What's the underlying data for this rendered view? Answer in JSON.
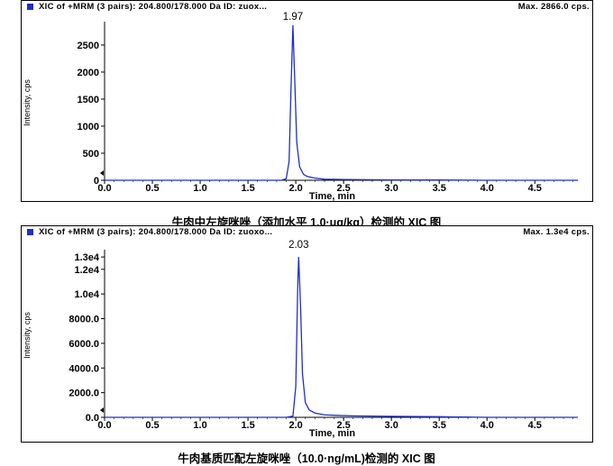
{
  "panels": [
    {
      "header": "XIC of +MRM (3 pairs): 204.800/178.000 Da ID: zuox...",
      "max_label": "Max. 2866.0 cps.",
      "caption": "牛肉中左旋咪唑（添加水平 1.0·μg/kg）检测的 XIC 图",
      "color_accent": "#1f2fc4"
    },
    {
      "header": "XIC of +MRM (3 pairs): 204.800/178.000 Da ID: zuoxo...",
      "max_label": "Max. 1.3e4 cps.",
      "caption": "牛肉基质匹配左旋咪唑（10.0·ng/mL)检测的 XIC 图",
      "color_accent": "#1f2fc4"
    }
  ],
  "chart_data": [
    {
      "type": "line",
      "xlabel": "Time, min",
      "ylabel": "Intensity, cps",
      "xlim": [
        0,
        4.95
      ],
      "ylim": [
        0,
        2866
      ],
      "x_ticks": [
        "0.0",
        "0.5",
        "1.0",
        "1.5",
        "2.0",
        "2.5",
        "3.0",
        "3.5",
        "4.0",
        "4.5"
      ],
      "x_tick_values": [
        0,
        0.5,
        1.0,
        1.5,
        2.0,
        2.5,
        3.0,
        3.5,
        4.0,
        4.5
      ],
      "y_ticks": [
        "0",
        "500",
        "1000",
        "1500",
        "2000",
        "2500"
      ],
      "y_tick_values": [
        0,
        500,
        1000,
        1500,
        2000,
        2500
      ],
      "peak_label": "1.97",
      "series": [
        {
          "color": "#1f2fc4",
          "x": [
            0.0,
            0.5,
            1.0,
            1.5,
            1.85,
            1.9,
            1.93,
            1.95,
            1.97,
            1.99,
            2.01,
            2.04,
            2.08,
            2.12,
            2.2,
            2.3,
            2.5,
            2.8,
            3.0,
            3.5,
            4.0,
            4.5,
            4.95
          ],
          "y": [
            0,
            0,
            0,
            0,
            0,
            30,
            350,
            1700,
            2866,
            1800,
            700,
            250,
            110,
            70,
            40,
            20,
            15,
            10,
            5,
            5,
            0,
            0,
            0
          ]
        }
      ]
    },
    {
      "type": "line",
      "xlabel": "Time, min",
      "ylabel": "Intensity, cps",
      "xlim": [
        0,
        4.95
      ],
      "ylim": [
        0,
        13300
      ],
      "x_ticks": [
        "0.0",
        "0.5",
        "1.0",
        "1.5",
        "2.0",
        "2.5",
        "3.0",
        "3.5",
        "4.0",
        "4.5"
      ],
      "x_tick_values": [
        0,
        0.5,
        1.0,
        1.5,
        2.0,
        2.5,
        3.0,
        3.5,
        4.0,
        4.5
      ],
      "y_ticks": [
        "0.0",
        "2000.0",
        "4000.0",
        "6000.0",
        "8000.0",
        "1.0e4",
        "1.2e4",
        "1.3e4"
      ],
      "y_tick_values": [
        0,
        2000,
        4000,
        6000,
        8000,
        10000,
        12000,
        13000
      ],
      "peak_label": "2.03",
      "series": [
        {
          "color": "#1f2fc4",
          "x": [
            0.0,
            0.5,
            1.0,
            1.5,
            1.9,
            1.97,
            2.0,
            2.02,
            2.03,
            2.05,
            2.07,
            2.1,
            2.14,
            2.2,
            2.3,
            2.45,
            2.6,
            2.8,
            3.0,
            3.5,
            4.0,
            4.5,
            4.95
          ],
          "y": [
            0,
            0,
            0,
            0,
            0,
            100,
            2500,
            10500,
            13000,
            9000,
            3500,
            1200,
            600,
            350,
            200,
            150,
            120,
            100,
            80,
            50,
            0,
            0,
            0
          ]
        }
      ]
    }
  ]
}
